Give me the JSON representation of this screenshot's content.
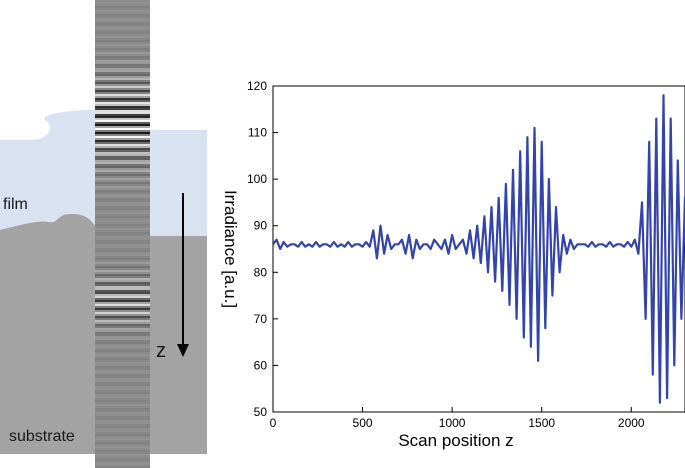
{
  "schematic": {
    "film_label": "film",
    "substrate_label": "substrate",
    "scan_axis_label": "z",
    "colors": {
      "film": "#d9e2f0",
      "substrate": "#a3a3a3",
      "strip": "#8a8a8a",
      "arrow": "#000000"
    }
  },
  "chart_data": {
    "type": "line",
    "title": "",
    "xlabel": "Scan position z",
    "ylabel": "Irradiance [a.u.]",
    "xlim": [
      0,
      2300
    ],
    "ylim": [
      50,
      120
    ],
    "xticks": [
      0,
      500,
      1000,
      1500,
      2000
    ],
    "yticks": [
      50,
      60,
      70,
      80,
      90,
      100,
      110,
      120
    ],
    "grid": false,
    "series": [
      {
        "color": "#3344aa",
        "x_step": 20,
        "values": [
          86,
          87,
          85,
          86.5,
          85.5,
          86,
          86,
          85.5,
          86.5,
          85.5,
          86,
          85.5,
          86.5,
          85.5,
          86,
          86,
          85.5,
          86.5,
          85.5,
          86,
          85.5,
          86.5,
          85.5,
          86,
          86,
          85.5,
          86.5,
          85.5,
          89,
          83,
          90,
          84,
          88,
          85,
          86,
          86,
          87,
          84,
          88,
          83,
          87,
          85,
          86,
          86,
          85,
          87,
          86,
          85,
          87,
          84,
          88,
          85,
          86,
          87,
          84,
          89,
          83,
          90,
          82,
          92,
          80,
          94,
          78,
          96,
          76,
          99,
          73,
          102,
          70,
          106,
          66,
          109,
          64,
          111,
          61,
          108,
          68,
          100,
          75,
          94,
          80,
          88,
          84,
          87,
          85,
          86,
          86,
          86,
          85.5,
          86.5,
          85.5,
          86,
          86,
          85.5,
          86.5,
          85.5,
          86,
          86,
          85.5,
          86.5,
          85.5,
          87,
          84,
          95,
          70,
          108,
          58,
          113,
          52,
          118,
          53,
          113,
          60,
          104,
          70,
          96,
          78,
          90,
          83,
          87,
          85
        ]
      }
    ]
  }
}
